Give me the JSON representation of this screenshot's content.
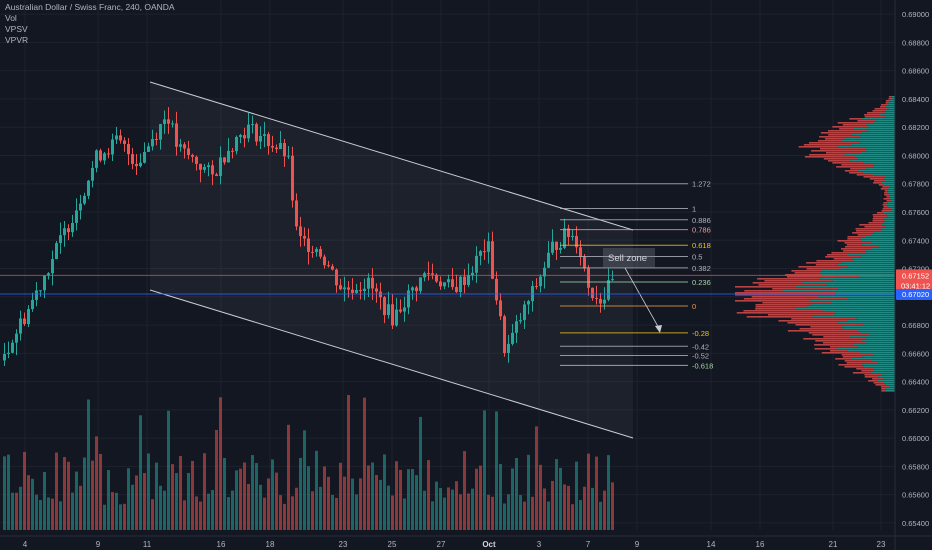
{
  "header": {
    "symbol_line": "Australian Dollar / Swiss Franc, 240, OANDA",
    "indicators": [
      "Vol",
      "VPSV",
      "VPVR"
    ]
  },
  "price_axis": {
    "ticks": [
      "0.69000",
      "0.68800",
      "0.68600",
      "0.68400",
      "0.68200",
      "0.68000",
      "0.67800",
      "0.67600",
      "0.67400",
      "0.67200",
      "0.67000",
      "0.66800",
      "0.66600",
      "0.66400",
      "0.66200",
      "0.66000",
      "0.65800",
      "0.65600",
      "0.65400"
    ],
    "range": [
      0.6535,
      0.691
    ],
    "current_price": "0.67152",
    "countdown": "03:41:12",
    "blue_line_price": "0.67020"
  },
  "time_axis": {
    "labels": [
      "4",
      "9",
      "11",
      "16",
      "18",
      "23",
      "25",
      "27",
      "Oct",
      "3",
      "7",
      "9",
      "14",
      "16",
      "21",
      "23"
    ]
  },
  "annotations": {
    "sell_zone": "Sell zone"
  },
  "fib_levels": [
    {
      "label": "1.272",
      "price": 0.678,
      "color": "#b2b5be"
    },
    {
      "label": "1",
      "price": 0.67625,
      "color": "#b2b5be"
    },
    {
      "label": "0.886",
      "price": 0.67545,
      "color": "#b2b5be"
    },
    {
      "label": "0.786",
      "price": 0.67475,
      "color": "#ef9a9a"
    },
    {
      "label": "0.618",
      "price": 0.67365,
      "color": "#f0c419"
    },
    {
      "label": "0.5",
      "price": 0.67285,
      "color": "#b2b5be"
    },
    {
      "label": "0.382",
      "price": 0.67205,
      "color": "#b2b5be"
    },
    {
      "label": "0.236",
      "price": 0.67105,
      "color": "#a5d6a7"
    },
    {
      "label": "0",
      "price": 0.66935,
      "color": "#ef9a49"
    },
    {
      "label": "-0.28",
      "price": 0.66745,
      "color": "#f0c419"
    },
    {
      "label": "-0.42",
      "price": 0.6665,
      "color": "#b2b5be"
    },
    {
      "label": "-0.52",
      "price": 0.66585,
      "color": "#b2b5be"
    },
    {
      "label": "-0.618",
      "price": 0.66515,
      "color": "#a5d6a7"
    }
  ],
  "colors": {
    "background": "#131722",
    "up": "#26a69a",
    "down": "#ef5350",
    "text": "#b2b5be",
    "price_badge": "#ef5350",
    "blue_badge": "#2962ff"
  }
}
